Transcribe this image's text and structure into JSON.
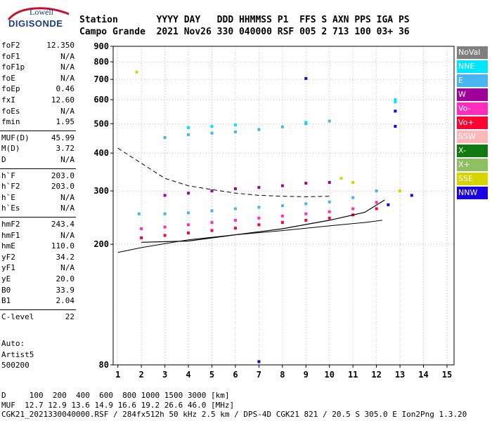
{
  "logo": {
    "top": "Lowell",
    "main": "DIGISONDE"
  },
  "header": {
    "line1": "Station       YYYY DAY   DDD HHMMSS P1  FFS S AXN PPS IGA PS",
    "line2": "Campo Grande  2021 Nov26 330 040000 RSF 005 2 713 100 03+ 36"
  },
  "params": {
    "group1": [
      {
        "k": "foF2",
        "v": "12.350"
      },
      {
        "k": "foF1",
        "v": "N/A"
      },
      {
        "k": "foF1p",
        "v": "N/A"
      },
      {
        "k": "foE",
        "v": "N/A"
      },
      {
        "k": "foEp",
        "v": "0.46"
      },
      {
        "k": "fxI",
        "v": "12.60"
      },
      {
        "k": "foEs",
        "v": "N/A"
      },
      {
        "k": "fmin",
        "v": "1.95"
      }
    ],
    "group2": [
      {
        "k": "MUF(D)",
        "v": "45.99"
      },
      {
        "k": "M(D)",
        "v": "3.72"
      },
      {
        "k": "D",
        "v": "N/A"
      }
    ],
    "group3": [
      {
        "k": "h`F",
        "v": "203.0"
      },
      {
        "k": "h`F2",
        "v": "203.0"
      },
      {
        "k": "h`E",
        "v": "N/A"
      },
      {
        "k": "h`Es",
        "v": "N/A"
      }
    ],
    "group4": [
      {
        "k": "hmF2",
        "v": "243.4"
      },
      {
        "k": "hmF1",
        "v": "N/A"
      },
      {
        "k": "hmE",
        "v": "110.0"
      },
      {
        "k": "yF2",
        "v": "34.2"
      },
      {
        "k": "yF1",
        "v": "N/A"
      },
      {
        "k": "yE",
        "v": "20.0"
      },
      {
        "k": "B0",
        "v": "33.9"
      },
      {
        "k": "B1",
        "v": "2.04"
      }
    ],
    "group5": [
      {
        "k": "C-level",
        "v": "22"
      }
    ]
  },
  "auto": {
    "line1": "Auto:",
    "line2": "Artist5",
    "line3": "500200"
  },
  "legend": [
    {
      "label": "NoVal",
      "color": "#7f7f7f"
    },
    {
      "label": "NNE",
      "color": "#00e5ff"
    },
    {
      "label": "E",
      "color": "#48b4f0"
    },
    {
      "label": "W",
      "color": "#a0009a"
    },
    {
      "label": "Vo-",
      "color": "#ff2dbb"
    },
    {
      "label": "Vo+",
      "color": "#ff0033"
    },
    {
      "label": "SSW",
      "color": "#ffb8b8"
    },
    {
      "label": "X-",
      "color": "#107a10"
    },
    {
      "label": "X+",
      "color": "#8cc060"
    },
    {
      "label": "SSE",
      "color": "#d6d400"
    },
    {
      "label": "NNW",
      "color": "#1a00e0"
    }
  ],
  "footer": {
    "line1": "D     100  200  400  600  800 1000 1500 3000 [km]",
    "line2": "MUF  12.7 12.9 13.6 14.9 16.6 19.2 26.6 46.0 [MHz]",
    "line3": "CGK21_2021330040000.RSF / 284fx512h 50 kHz 2.5 km / DPS-4D CGK21 821 / 20.5 S 305.0 E Ion2Png 1.3.20"
  },
  "chart_data": {
    "type": "scatter",
    "title": "",
    "xlabel": "",
    "ylabel": "",
    "xlim": [
      0.8,
      15.3
    ],
    "ylim": [
      80,
      900
    ],
    "y_scale": "log",
    "grid": true,
    "legend_position": "right",
    "xticks": [
      "1",
      "2",
      "3",
      "4",
      "5",
      "6",
      "7",
      "8",
      "9",
      "10",
      "11",
      "12",
      "13",
      "14",
      "15"
    ],
    "yticks": [
      "900",
      "800",
      "700",
      "600",
      "500",
      "400",
      "300",
      "200",
      "80"
    ],
    "ytick_values": [
      900,
      800,
      700,
      600,
      500,
      400,
      300,
      200,
      80
    ],
    "series": [
      {
        "name": "E",
        "points": [
          [
            1.9,
            252
          ],
          [
            3,
            252
          ],
          [
            4,
            254
          ],
          [
            5,
            258
          ],
          [
            6,
            262
          ],
          [
            7,
            265
          ],
          [
            8,
            268
          ],
          [
            9,
            272
          ],
          [
            10,
            276
          ],
          [
            11,
            285
          ],
          [
            12,
            300
          ],
          [
            3,
            450
          ],
          [
            4,
            460
          ],
          [
            5,
            465
          ],
          [
            6,
            470
          ],
          [
            7,
            478
          ],
          [
            8,
            488
          ],
          [
            9,
            500
          ],
          [
            10,
            510
          ]
        ]
      },
      {
        "name": "Vo-",
        "points": [
          [
            2,
            225
          ],
          [
            3,
            228
          ],
          [
            4,
            232
          ],
          [
            5,
            236
          ],
          [
            6,
            240
          ],
          [
            7,
            244
          ],
          [
            8,
            248
          ],
          [
            9,
            252
          ],
          [
            10,
            256
          ],
          [
            11,
            262
          ],
          [
            12,
            275
          ]
        ]
      },
      {
        "name": "Vo+",
        "points": [
          [
            2,
            210
          ],
          [
            3,
            214
          ],
          [
            4,
            218
          ],
          [
            5,
            222
          ],
          [
            6,
            226
          ],
          [
            7,
            232
          ],
          [
            8,
            236
          ],
          [
            9,
            240
          ],
          [
            10,
            244
          ],
          [
            11,
            250
          ],
          [
            12,
            262
          ]
        ]
      },
      {
        "name": "W",
        "points": [
          [
            3,
            290
          ],
          [
            4,
            295
          ],
          [
            5,
            300
          ],
          [
            6,
            305
          ],
          [
            7,
            308
          ],
          [
            8,
            312
          ],
          [
            9,
            318
          ],
          [
            10,
            320
          ]
        ]
      },
      {
        "name": "NNW",
        "points": [
          [
            7,
            82
          ],
          [
            9,
            705
          ],
          [
            12.8,
            550
          ],
          [
            12.8,
            490
          ],
          [
            13.5,
            290
          ],
          [
            12.5,
            270
          ]
        ]
      },
      {
        "name": "NNE",
        "points": [
          [
            12.8,
            600
          ],
          [
            12.8,
            590
          ],
          [
            4,
            485
          ],
          [
            5,
            490
          ],
          [
            6,
            495
          ],
          [
            9,
            505
          ]
        ]
      },
      {
        "name": "SSE",
        "points": [
          [
            1.8,
            740
          ],
          [
            10.5,
            330
          ],
          [
            11,
            320
          ],
          [
            13,
            300
          ]
        ]
      }
    ],
    "trace_lower": [
      [
        1,
        188
      ],
      [
        2,
        195
      ],
      [
        4,
        207
      ],
      [
        6,
        215
      ],
      [
        8,
        222
      ],
      [
        10,
        230
      ],
      [
        11.5,
        236
      ],
      [
        12.25,
        240
      ]
    ],
    "trace_dashed": [
      [
        1,
        415
      ],
      [
        2,
        370
      ],
      [
        3,
        330
      ],
      [
        4,
        312
      ],
      [
        5,
        303
      ],
      [
        6,
        295
      ],
      [
        7,
        290
      ],
      [
        8,
        288
      ],
      [
        9,
        287
      ],
      [
        10,
        288
      ]
    ],
    "trace_profile": [
      [
        2,
        203
      ],
      [
        4,
        205
      ],
      [
        6,
        215
      ],
      [
        8,
        225
      ],
      [
        10,
        240
      ],
      [
        11.5,
        255
      ],
      [
        12.35,
        280
      ]
    ]
  }
}
